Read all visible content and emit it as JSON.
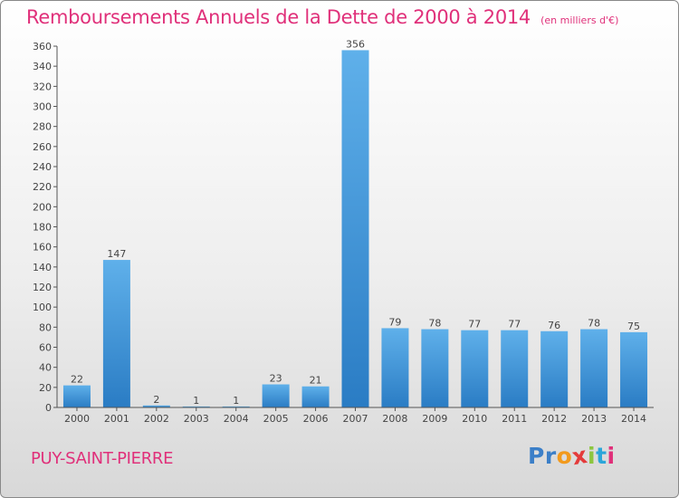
{
  "chart_data": {
    "type": "bar",
    "title": "Remboursements Annuels de la Dette de 2000 à 2014",
    "subtitle": "(en milliers d'€)",
    "categories": [
      "2000",
      "2001",
      "2002",
      "2003",
      "2004",
      "2005",
      "2006",
      "2007",
      "2008",
      "2009",
      "2010",
      "2011",
      "2012",
      "2013",
      "2014"
    ],
    "values": [
      22,
      147,
      2,
      1,
      1,
      23,
      21,
      356,
      79,
      78,
      77,
      77,
      76,
      78,
      75
    ],
    "ylim": [
      0,
      360
    ],
    "yticks": [
      0,
      20,
      40,
      60,
      80,
      100,
      120,
      140,
      160,
      180,
      200,
      220,
      240,
      260,
      280,
      300,
      320,
      340,
      360
    ],
    "grid": false,
    "colors": {
      "bar_light": "#5fb0ea",
      "bar_dark": "#2a7cc4",
      "axis": "#555555",
      "label": "#444444"
    }
  },
  "footer": {
    "city": "PUY-SAINT-PIERRE",
    "logo_text": [
      "P",
      "r",
      "o",
      "x",
      "i",
      "t",
      "i"
    ],
    "logo_colors": [
      "#3b7fc8",
      "#3b7fc8",
      "#f29a1d",
      "#e43b3b",
      "#8cc63f",
      "#2ba6d9",
      "#e0307a"
    ]
  }
}
